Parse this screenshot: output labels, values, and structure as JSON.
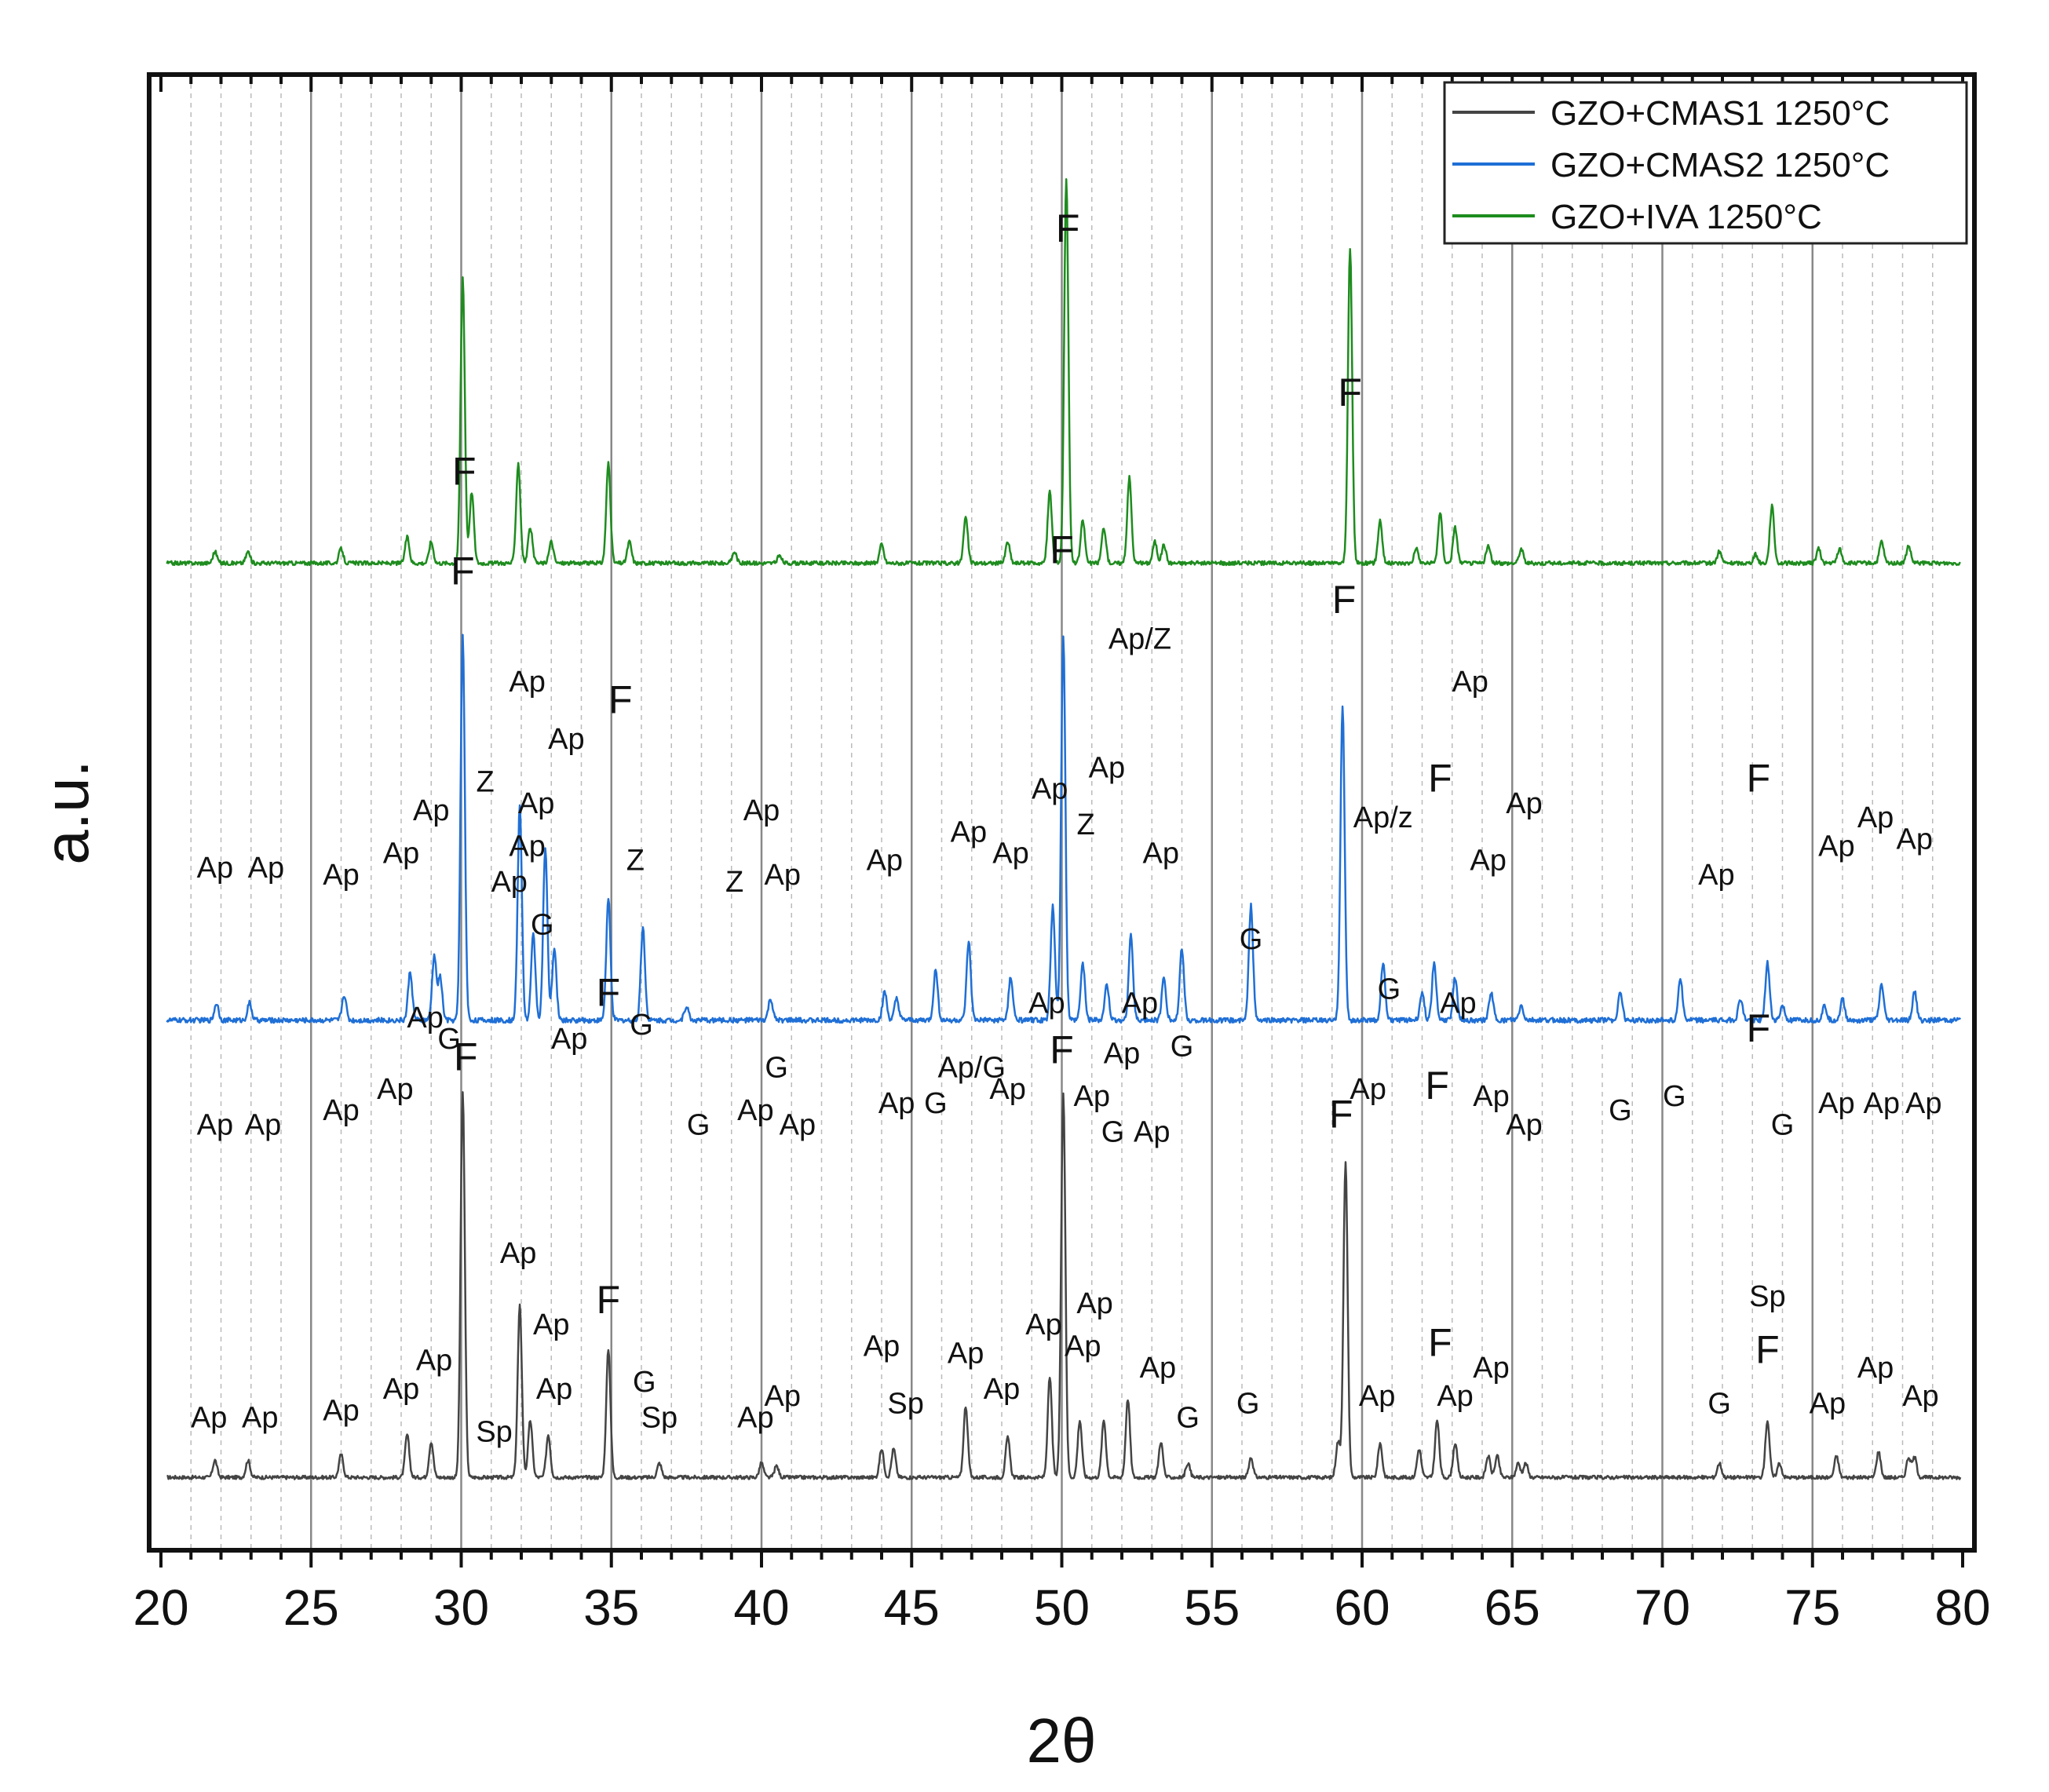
{
  "chart_data": {
    "type": "line",
    "xlabel": "2θ",
    "ylabel": "a.u.",
    "xlim": [
      20,
      80
    ],
    "ylim": [
      0,
      100
    ],
    "x_ticks": [
      "20",
      "25",
      "30",
      "35",
      "40",
      "45",
      "50",
      "55",
      "60",
      "65",
      "70",
      "75",
      "80"
    ],
    "grid": "vertical lines every 5°, dashed lines every 1°",
    "legend_position": "top-right",
    "series": [
      {
        "name": "GZO+CMAS1 1250°C",
        "color": "#444444",
        "baseline": 4,
        "noise": 0.25,
        "peaks": [
          [
            21.8,
            1.2
          ],
          [
            22.9,
            1.2
          ],
          [
            26,
            1.6
          ],
          [
            28.2,
            3
          ],
          [
            29,
            2.5
          ],
          [
            30.05,
            27
          ],
          [
            31.95,
            12
          ],
          [
            32.3,
            4
          ],
          [
            32.9,
            3
          ],
          [
            34.9,
            9
          ],
          [
            36.6,
            1
          ],
          [
            40,
            1
          ],
          [
            40.5,
            0.8
          ],
          [
            44,
            2
          ],
          [
            44.4,
            2
          ],
          [
            46.8,
            5
          ],
          [
            48.2,
            2.8
          ],
          [
            49.6,
            7
          ],
          [
            50.05,
            27
          ],
          [
            50.6,
            4
          ],
          [
            51.4,
            4
          ],
          [
            52.2,
            5.5
          ],
          [
            53.3,
            2.5
          ],
          [
            54.2,
            1
          ],
          [
            56.3,
            1.4
          ],
          [
            59.2,
            2.5
          ],
          [
            59.45,
            22
          ],
          [
            60.6,
            2.4
          ],
          [
            61.9,
            2
          ],
          [
            62.5,
            4
          ],
          [
            63.1,
            2.4
          ],
          [
            64.2,
            1.5
          ],
          [
            64.5,
            1.5
          ],
          [
            65.2,
            1
          ],
          [
            65.45,
            1
          ],
          [
            71.9,
            1
          ],
          [
            73.5,
            4
          ],
          [
            73.9,
            1
          ],
          [
            75.8,
            1.5
          ],
          [
            77.2,
            1.8
          ],
          [
            78.2,
            1.4
          ],
          [
            78.4,
            1.4
          ]
        ]
      },
      {
        "name": "GZO+CMAS2 1250°C",
        "color": "#1f6fd6",
        "baseline": 36,
        "noise": 0.35,
        "peaks": [
          [
            21.85,
            1.2
          ],
          [
            22.95,
            1.2
          ],
          [
            26.1,
            1.8
          ],
          [
            28.3,
            3.4
          ],
          [
            29.1,
            4.5
          ],
          [
            29.3,
            3
          ],
          [
            30.05,
            27
          ],
          [
            31.95,
            15
          ],
          [
            32.4,
            6
          ],
          [
            32.8,
            12
          ],
          [
            33.1,
            5
          ],
          [
            34.9,
            8.5
          ],
          [
            36.05,
            6.5
          ],
          [
            37.5,
            1
          ],
          [
            40.3,
            1.5
          ],
          [
            44.1,
            2
          ],
          [
            44.5,
            1.5
          ],
          [
            45.8,
            3.5
          ],
          [
            46.9,
            5.5
          ],
          [
            48.3,
            3
          ],
          [
            49.7,
            8
          ],
          [
            50.05,
            27
          ],
          [
            50.7,
            4
          ],
          [
            51.5,
            2.5
          ],
          [
            52.3,
            6
          ],
          [
            53.4,
            3
          ],
          [
            54,
            5
          ],
          [
            56.3,
            8
          ],
          [
            59.35,
            22
          ],
          [
            60.7,
            4
          ],
          [
            62,
            2
          ],
          [
            62.4,
            4
          ],
          [
            63.1,
            3
          ],
          [
            64.3,
            2
          ],
          [
            65.3,
            1
          ],
          [
            68.6,
            2
          ],
          [
            70.6,
            3
          ],
          [
            72.6,
            1.5
          ],
          [
            73.5,
            4
          ],
          [
            74,
            1
          ],
          [
            75.4,
            1
          ],
          [
            76,
            1.5
          ],
          [
            77.3,
            2.5
          ],
          [
            78.4,
            2
          ]
        ]
      },
      {
        "name": "GZO+IVA 1250°C",
        "color": "#1e8c1e",
        "baseline": 68,
        "noise": 0.28,
        "peaks": [
          [
            21.8,
            0.8
          ],
          [
            22.9,
            0.8
          ],
          [
            26,
            1
          ],
          [
            28.2,
            1.8
          ],
          [
            29,
            1.5
          ],
          [
            30.05,
            20
          ],
          [
            30.35,
            5
          ],
          [
            31.9,
            7
          ],
          [
            32.3,
            2.5
          ],
          [
            33,
            1.5
          ],
          [
            34.9,
            7
          ],
          [
            35.6,
            1.5
          ],
          [
            39.1,
            0.8
          ],
          [
            40.6,
            0.5
          ],
          [
            44,
            1.3
          ],
          [
            46.8,
            3.2
          ],
          [
            48.2,
            1.5
          ],
          [
            49.6,
            5
          ],
          [
            50.15,
            27
          ],
          [
            50.7,
            3
          ],
          [
            51.4,
            2.5
          ],
          [
            52.25,
            6
          ],
          [
            53.1,
            1.5
          ],
          [
            53.4,
            1.3
          ],
          [
            59.6,
            22
          ],
          [
            60.6,
            3
          ],
          [
            61.8,
            1
          ],
          [
            62.6,
            3.5
          ],
          [
            63.1,
            2.5
          ],
          [
            64.2,
            1.2
          ],
          [
            65.3,
            1
          ],
          [
            71.9,
            0.8
          ],
          [
            73.1,
            0.6
          ],
          [
            73.65,
            4
          ],
          [
            75.2,
            1
          ],
          [
            75.9,
            1
          ],
          [
            77.3,
            1.5
          ],
          [
            78.2,
            1.2
          ]
        ]
      }
    ],
    "annotations": [
      {
        "text": "F",
        "x": 30.1,
        "y": 73.5,
        "big": true
      },
      {
        "text": "Z",
        "x": 30.8,
        "y": 52
      },
      {
        "text": "Ap",
        "x": 32.2,
        "y": 59
      },
      {
        "text": "Ap",
        "x": 33.5,
        "y": 55
      },
      {
        "text": "Ap",
        "x": 32.5,
        "y": 50.5
      },
      {
        "text": "F",
        "x": 35.3,
        "y": 57.5,
        "big": true
      },
      {
        "text": "Z",
        "x": 35.8,
        "y": 46.5
      },
      {
        "text": "Ap",
        "x": 21.8,
        "y": 46
      },
      {
        "text": "Ap",
        "x": 23.5,
        "y": 46
      },
      {
        "text": "Ap",
        "x": 26,
        "y": 45.5
      },
      {
        "text": "Ap",
        "x": 28,
        "y": 47
      },
      {
        "text": "Ap",
        "x": 29,
        "y": 50
      },
      {
        "text": "Ap",
        "x": 40,
        "y": 50
      },
      {
        "text": "Z",
        "x": 39.1,
        "y": 45
      },
      {
        "text": "Ap",
        "x": 40.7,
        "y": 45.5
      },
      {
        "text": "Ap",
        "x": 44.1,
        "y": 46.5
      },
      {
        "text": "Ap",
        "x": 46.9,
        "y": 48.5
      },
      {
        "text": "Ap",
        "x": 48.3,
        "y": 47
      },
      {
        "text": "Ap",
        "x": 49.6,
        "y": 51.5
      },
      {
        "text": "F",
        "x": 50.2,
        "y": 90.5,
        "big": true
      },
      {
        "text": "Ap/Z",
        "x": 52.6,
        "y": 62
      },
      {
        "text": "Ap",
        "x": 51.5,
        "y": 53
      },
      {
        "text": "Z",
        "x": 50.8,
        "y": 49
      },
      {
        "text": "Ap",
        "x": 53.3,
        "y": 47
      },
      {
        "text": "F",
        "x": 59.6,
        "y": 79,
        "big": true
      },
      {
        "text": "Ap/z",
        "x": 60.7,
        "y": 49.5
      },
      {
        "text": "F",
        "x": 62.6,
        "y": 52,
        "big": true
      },
      {
        "text": "Ap",
        "x": 63.6,
        "y": 59
      },
      {
        "text": "Ap",
        "x": 64.2,
        "y": 46.5
      },
      {
        "text": "Ap",
        "x": 65.4,
        "y": 50.5
      },
      {
        "text": "Ap",
        "x": 71.8,
        "y": 45.5
      },
      {
        "text": "F",
        "x": 73.2,
        "y": 52,
        "big": true
      },
      {
        "text": "Ap",
        "x": 75.8,
        "y": 47.5
      },
      {
        "text": "Ap",
        "x": 77.1,
        "y": 49.5
      },
      {
        "text": "Ap",
        "x": 78.4,
        "y": 48
      },
      {
        "text": "F",
        "x": 30.05,
        "y": 66.5,
        "big": true
      },
      {
        "text": "Ap",
        "x": 32.2,
        "y": 47.5
      },
      {
        "text": "Ap",
        "x": 31.6,
        "y": 45
      },
      {
        "text": "G",
        "x": 32.7,
        "y": 42
      },
      {
        "text": "Ap",
        "x": 28.8,
        "y": 35.5
      },
      {
        "text": "G",
        "x": 29.6,
        "y": 34
      },
      {
        "text": "Ap",
        "x": 33.6,
        "y": 34
      },
      {
        "text": "F",
        "x": 34.9,
        "y": 37,
        "big": true
      },
      {
        "text": "G",
        "x": 36,
        "y": 35
      },
      {
        "text": "Ap",
        "x": 21.8,
        "y": 28
      },
      {
        "text": "Ap",
        "x": 23.4,
        "y": 28
      },
      {
        "text": "Ap",
        "x": 26,
        "y": 29
      },
      {
        "text": "Ap",
        "x": 27.8,
        "y": 30.5
      },
      {
        "text": "G",
        "x": 37.9,
        "y": 28
      },
      {
        "text": "Ap",
        "x": 39.8,
        "y": 29
      },
      {
        "text": "G",
        "x": 40.5,
        "y": 32
      },
      {
        "text": "Ap",
        "x": 41.2,
        "y": 28
      },
      {
        "text": "Ap",
        "x": 44.5,
        "y": 29.5
      },
      {
        "text": "Ap/G",
        "x": 47,
        "y": 32
      },
      {
        "text": "G",
        "x": 45.8,
        "y": 29.5
      },
      {
        "text": "Ap",
        "x": 48.2,
        "y": 30.5
      },
      {
        "text": "Ap",
        "x": 49.5,
        "y": 36.5
      },
      {
        "text": "F",
        "x": 50,
        "y": 68,
        "big": true
      },
      {
        "text": "Ap",
        "x": 52,
        "y": 33
      },
      {
        "text": "Ap",
        "x": 52.6,
        "y": 36.5
      },
      {
        "text": "G",
        "x": 54,
        "y": 33.5
      },
      {
        "text": "Ap",
        "x": 51,
        "y": 30
      },
      {
        "text": "G",
        "x": 51.7,
        "y": 27.5
      },
      {
        "text": "Ap",
        "x": 53,
        "y": 27.5
      },
      {
        "text": "G",
        "x": 56.3,
        "y": 41
      },
      {
        "text": "F",
        "x": 59.4,
        "y": 64.5,
        "big": true
      },
      {
        "text": "Ap",
        "x": 60.2,
        "y": 30.5
      },
      {
        "text": "G",
        "x": 60.9,
        "y": 37.5
      },
      {
        "text": "F",
        "x": 62.5,
        "y": 30.5,
        "big": true
      },
      {
        "text": "Ap",
        "x": 63.2,
        "y": 36.5
      },
      {
        "text": "Ap",
        "x": 64.3,
        "y": 30
      },
      {
        "text": "Ap",
        "x": 65.4,
        "y": 28
      },
      {
        "text": "G",
        "x": 68.6,
        "y": 29
      },
      {
        "text": "G",
        "x": 70.4,
        "y": 30
      },
      {
        "text": "F",
        "x": 73.2,
        "y": 34.5,
        "big": true
      },
      {
        "text": "G",
        "x": 74,
        "y": 28
      },
      {
        "text": "Ap",
        "x": 75.8,
        "y": 29.5
      },
      {
        "text": "Ap",
        "x": 77.3,
        "y": 29.5
      },
      {
        "text": "Ap",
        "x": 78.7,
        "y": 29.5
      },
      {
        "text": "F",
        "x": 30.15,
        "y": 32.5,
        "big": true
      },
      {
        "text": "Ap",
        "x": 31.9,
        "y": 19
      },
      {
        "text": "F",
        "x": 34.9,
        "y": 15.5,
        "big": true
      },
      {
        "text": "Ap",
        "x": 33,
        "y": 14
      },
      {
        "text": "Ap",
        "x": 29.1,
        "y": 11.5
      },
      {
        "text": "Ap",
        "x": 28,
        "y": 9.5
      },
      {
        "text": "Ap",
        "x": 33.1,
        "y": 9.5
      },
      {
        "text": "Sp",
        "x": 31.1,
        "y": 6.5
      },
      {
        "text": "G",
        "x": 36.1,
        "y": 10
      },
      {
        "text": "Sp",
        "x": 36.6,
        "y": 7.5
      },
      {
        "text": "Ap",
        "x": 21.6,
        "y": 7.5
      },
      {
        "text": "Ap",
        "x": 23.3,
        "y": 7.5
      },
      {
        "text": "Ap",
        "x": 26,
        "y": 8
      },
      {
        "text": "Ap",
        "x": 39.8,
        "y": 7.5
      },
      {
        "text": "Ap",
        "x": 40.7,
        "y": 9
      },
      {
        "text": "Ap",
        "x": 44,
        "y": 12.5
      },
      {
        "text": "Sp",
        "x": 44.8,
        "y": 8.5
      },
      {
        "text": "Ap",
        "x": 46.8,
        "y": 12
      },
      {
        "text": "Ap",
        "x": 48,
        "y": 9.5
      },
      {
        "text": "Ap",
        "x": 49.4,
        "y": 14
      },
      {
        "text": "F",
        "x": 50,
        "y": 33,
        "big": true
      },
      {
        "text": "Ap",
        "x": 51.1,
        "y": 15.5
      },
      {
        "text": "Ap",
        "x": 50.7,
        "y": 12.5
      },
      {
        "text": "Ap",
        "x": 53.2,
        "y": 11
      },
      {
        "text": "G",
        "x": 54.2,
        "y": 7.5
      },
      {
        "text": "G",
        "x": 56.2,
        "y": 8.5
      },
      {
        "text": "F",
        "x": 59.3,
        "y": 28.5,
        "big": true
      },
      {
        "text": "Ap",
        "x": 60.5,
        "y": 9
      },
      {
        "text": "F",
        "x": 62.6,
        "y": 12.5,
        "big": true
      },
      {
        "text": "Ap",
        "x": 63.1,
        "y": 9
      },
      {
        "text": "Ap",
        "x": 64.3,
        "y": 11
      },
      {
        "text": "G",
        "x": 71.9,
        "y": 8.5
      },
      {
        "text": "Sp",
        "x": 73.5,
        "y": 16
      },
      {
        "text": "F",
        "x": 73.5,
        "y": 12,
        "big": true
      },
      {
        "text": "Ap",
        "x": 75.5,
        "y": 8.5
      },
      {
        "text": "Ap",
        "x": 77.1,
        "y": 11
      },
      {
        "text": "Ap",
        "x": 78.6,
        "y": 9
      }
    ]
  }
}
